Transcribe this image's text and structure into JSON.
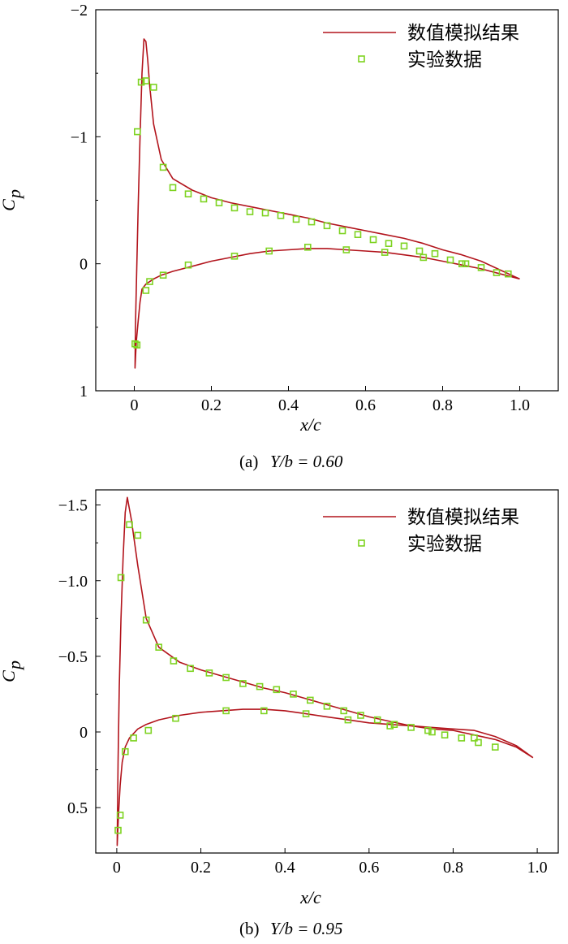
{
  "colors": {
    "line": "#b2141c",
    "marker": "#7ed321",
    "axis": "#000000"
  },
  "chart_data": [
    {
      "type": "line",
      "caption": {
        "prefix": "(a)",
        "expr": "Y/b = 0.60"
      },
      "xlabel": "x/c",
      "ylabel": {
        "main": "C",
        "sub": "p"
      },
      "xlim": [
        -0.1,
        1.1
      ],
      "ylim": [
        1,
        -2
      ],
      "y_inverted": true,
      "xticks": [
        0,
        0.2,
        0.4,
        0.6,
        0.8,
        1.0
      ],
      "xtick_labels": [
        "0",
        "0.2",
        "0.4",
        "0.6",
        "0.8",
        "1.0"
      ],
      "yticks": [
        -2,
        -1,
        0,
        1
      ],
      "ytick_labels": [
        "−2",
        "−1",
        "0",
        "1"
      ],
      "legend_position": "top-right",
      "series": [
        {
          "name": "数值模拟结果",
          "kind": "line",
          "x": [
            1.0,
            0.95,
            0.9,
            0.85,
            0.8,
            0.75,
            0.7,
            0.65,
            0.6,
            0.55,
            0.5,
            0.45,
            0.4,
            0.35,
            0.3,
            0.25,
            0.2,
            0.15,
            0.1,
            0.07,
            0.05,
            0.04,
            0.035,
            0.03,
            0.025,
            0.02,
            0.015,
            0.01,
            0.006,
            0.003,
            0.002,
            0.005,
            0.01,
            0.015,
            0.02,
            0.03,
            0.05,
            0.07,
            0.1,
            0.15,
            0.2,
            0.25,
            0.3,
            0.35,
            0.4,
            0.45,
            0.5,
            0.55,
            0.6,
            0.65,
            0.7,
            0.75,
            0.8,
            0.85,
            0.9,
            0.95,
            1.0
          ],
          "y": [
            0.12,
            0.05,
            -0.02,
            -0.07,
            -0.11,
            -0.16,
            -0.2,
            -0.23,
            -0.26,
            -0.29,
            -0.32,
            -0.36,
            -0.39,
            -0.42,
            -0.45,
            -0.48,
            -0.52,
            -0.58,
            -0.67,
            -0.82,
            -1.1,
            -1.4,
            -1.6,
            -1.75,
            -1.77,
            -1.5,
            -1.0,
            -0.45,
            0.1,
            0.5,
            0.82,
            0.62,
            0.45,
            0.3,
            0.2,
            0.16,
            0.12,
            0.09,
            0.06,
            0.02,
            -0.02,
            -0.05,
            -0.08,
            -0.1,
            -0.11,
            -0.12,
            -0.12,
            -0.11,
            -0.1,
            -0.09,
            -0.07,
            -0.05,
            -0.02,
            0.01,
            0.04,
            0.08,
            0.12
          ]
        },
        {
          "name": "实验数据",
          "kind": "scatter",
          "x": [
            0.008,
            0.018,
            0.03,
            0.05,
            0.075,
            0.1,
            0.14,
            0.18,
            0.22,
            0.26,
            0.3,
            0.34,
            0.38,
            0.42,
            0.46,
            0.5,
            0.54,
            0.58,
            0.62,
            0.66,
            0.7,
            0.74,
            0.78,
            0.82,
            0.86,
            0.9,
            0.94,
            0.97,
            0.002,
            0.007,
            0.03,
            0.04,
            0.075,
            0.14,
            0.26,
            0.35,
            0.45,
            0.55,
            0.65,
            0.75,
            0.85
          ],
          "y": [
            -1.04,
            -1.43,
            -1.44,
            -1.39,
            -0.76,
            -0.6,
            -0.55,
            -0.51,
            -0.48,
            -0.44,
            -0.41,
            -0.4,
            -0.38,
            -0.35,
            -0.33,
            -0.3,
            -0.26,
            -0.23,
            -0.19,
            -0.16,
            -0.14,
            -0.1,
            -0.08,
            -0.03,
            0.0,
            0.03,
            0.07,
            0.08,
            0.63,
            0.64,
            0.21,
            0.14,
            0.09,
            0.01,
            -0.06,
            -0.1,
            -0.13,
            -0.11,
            -0.09,
            -0.05,
            0.0
          ]
        }
      ]
    },
    {
      "type": "line",
      "caption": {
        "prefix": "(b)",
        "expr": "Y/b = 0.95"
      },
      "xlabel": "x/c",
      "ylabel": {
        "main": "C",
        "sub": "p"
      },
      "xlim": [
        -0.05,
        1.05
      ],
      "ylim": [
        0.8,
        -1.6
      ],
      "y_inverted": true,
      "xticks": [
        0,
        0.2,
        0.4,
        0.6,
        0.8,
        1.0
      ],
      "xtick_labels": [
        "0",
        "0.2",
        "0.4",
        "0.6",
        "0.8",
        "1.0"
      ],
      "yticks": [
        -1.5,
        -1.0,
        -0.5,
        0,
        0.5
      ],
      "ytick_labels": [
        "−1.5",
        "−1.0",
        "−0.5",
        "0",
        "0.5"
      ],
      "legend_position": "top-right",
      "series": [
        {
          "name": "数值模拟结果",
          "kind": "line",
          "x": [
            0.99,
            0.95,
            0.9,
            0.85,
            0.8,
            0.75,
            0.7,
            0.65,
            0.6,
            0.55,
            0.5,
            0.45,
            0.4,
            0.35,
            0.3,
            0.25,
            0.2,
            0.15,
            0.1,
            0.07,
            0.05,
            0.035,
            0.025,
            0.02,
            0.015,
            0.01,
            0.006,
            0.003,
            0.001,
            0.004,
            0.008,
            0.013,
            0.02,
            0.03,
            0.05,
            0.07,
            0.1,
            0.15,
            0.2,
            0.25,
            0.3,
            0.35,
            0.4,
            0.45,
            0.5,
            0.55,
            0.6,
            0.65,
            0.7,
            0.75,
            0.8,
            0.85,
            0.9,
            0.95,
            0.99
          ],
          "y": [
            0.17,
            0.1,
            0.05,
            0.02,
            -0.01,
            -0.02,
            -0.04,
            -0.07,
            -0.1,
            -0.14,
            -0.18,
            -0.22,
            -0.26,
            -0.29,
            -0.33,
            -0.37,
            -0.41,
            -0.46,
            -0.56,
            -0.75,
            -1.1,
            -1.4,
            -1.55,
            -1.45,
            -1.15,
            -0.75,
            -0.3,
            0.2,
            0.75,
            0.55,
            0.35,
            0.2,
            0.1,
            0.04,
            -0.02,
            -0.05,
            -0.08,
            -0.11,
            -0.13,
            -0.14,
            -0.15,
            -0.15,
            -0.14,
            -0.12,
            -0.1,
            -0.08,
            -0.06,
            -0.05,
            -0.04,
            -0.03,
            -0.02,
            -0.01,
            0.03,
            0.09,
            0.17
          ]
        },
        {
          "name": "实验数据",
          "kind": "scatter",
          "x": [
            0.01,
            0.03,
            0.05,
            0.07,
            0.1,
            0.135,
            0.175,
            0.22,
            0.26,
            0.3,
            0.34,
            0.38,
            0.42,
            0.46,
            0.5,
            0.54,
            0.58,
            0.62,
            0.66,
            0.7,
            0.74,
            0.78,
            0.82,
            0.86,
            0.9,
            0.003,
            0.008,
            0.02,
            0.04,
            0.075,
            0.14,
            0.26,
            0.35,
            0.45,
            0.55,
            0.65,
            0.75,
            0.85
          ],
          "y": [
            -1.02,
            -1.37,
            -1.3,
            -0.74,
            -0.56,
            -0.47,
            -0.42,
            -0.39,
            -0.36,
            -0.32,
            -0.3,
            -0.28,
            -0.25,
            -0.21,
            -0.17,
            -0.14,
            -0.11,
            -0.08,
            -0.05,
            -0.03,
            -0.01,
            0.02,
            0.04,
            0.07,
            0.1,
            0.65,
            0.55,
            0.13,
            0.04,
            -0.01,
            -0.09,
            -0.14,
            -0.14,
            -0.12,
            -0.08,
            -0.04,
            0.0,
            0.04
          ]
        }
      ]
    }
  ]
}
